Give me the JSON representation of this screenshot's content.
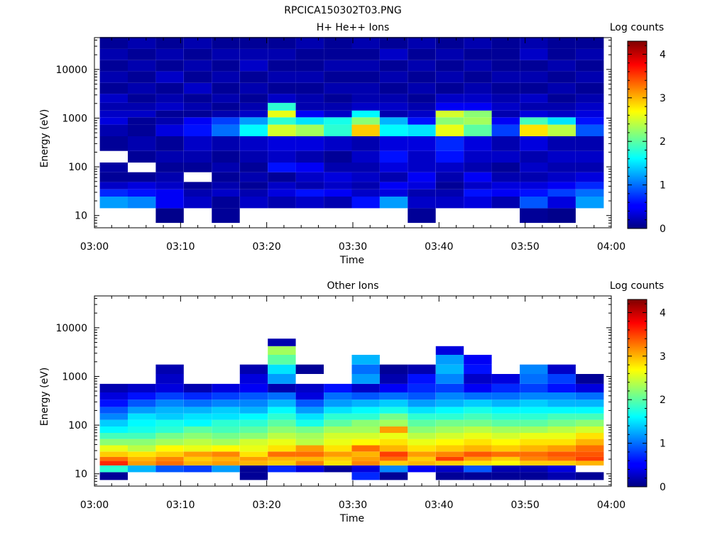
{
  "figure": {
    "title": "RPCICA150302T03.PNG"
  },
  "chart_data": [
    {
      "type": "heatmap",
      "title": "H+ He++ Ions",
      "xlabel": "Time",
      "ylabel": "Energy (eV)",
      "x_ticks": [
        "03:00",
        "03:10",
        "03:20",
        "03:30",
        "03:40",
        "03:50",
        "04:00"
      ],
      "xlim": [
        "03:00",
        "04:00"
      ],
      "y_scale": "log",
      "ylim": [
        5.6,
        45000
      ],
      "y_ticks": [
        10,
        100,
        1000,
        10000
      ],
      "y_tick_labels": [
        "10",
        "100",
        "1000",
        "10000"
      ],
      "colorbar": {
        "label": "Log counts",
        "ticks": [
          "0",
          "1",
          "2",
          "3",
          "4"
        ],
        "range": [
          0,
          4.3
        ]
      },
      "time_bins": [
        "03:02:15",
        "03:05:30",
        "03:08:45",
        "03:12:00",
        "03:15:15",
        "03:18:30",
        "03:21:45",
        "03:25:00",
        "03:28:15",
        "03:31:30",
        "03:34:45",
        "03:38:00",
        "03:41:15",
        "03:44:30",
        "03:47:45",
        "03:51:00",
        "03:54:15",
        "03:57:30"
      ],
      "energy_bins_eV": [
        10,
        20,
        30,
        40,
        60,
        100,
        150,
        300,
        600,
        900,
        1200,
        1700,
        2500,
        4000,
        7000,
        12000,
        20000,
        35000
      ],
      "z": [
        [
          0,
          1.2,
          0.7,
          0.3,
          0.1,
          0.15,
          0,
          0.1,
          0.2,
          0.4,
          0.3,
          0.2,
          0.3,
          0.1,
          0.2,
          0.1,
          0.2,
          0.1
        ],
        [
          0,
          1.1,
          0.6,
          0.4,
          0.1,
          0,
          0.1,
          0.2,
          0.1,
          0.1,
          0.3,
          0.2,
          0.1,
          0.2,
          0.1,
          0.2,
          0.1,
          0.2
        ],
        [
          0.05,
          0.5,
          0.5,
          0.3,
          0.2,
          0.1,
          0.2,
          0.1,
          0.4,
          0.2,
          0.1,
          0.3,
          0.2,
          0.1,
          0.3,
          0.1,
          0.2,
          0.1
        ],
        [
          0,
          0.3,
          0.2,
          0.1,
          0,
          0.1,
          0.2,
          0.3,
          0.6,
          0.5,
          0.1,
          0.2,
          0.1,
          0.3,
          0.1,
          0.2,
          0.1,
          0.2
        ],
        [
          0.1,
          0.1,
          0.3,
          0.2,
          0.1,
          0.2,
          0.1,
          0.2,
          1.0,
          0.8,
          0.2,
          0.1,
          0.2,
          0.1,
          0.2,
          0.1,
          0.2,
          0.1
        ],
        [
          0,
          0.3,
          0.2,
          0.1,
          0.2,
          0.1,
          0.2,
          0.3,
          1.6,
          1.2,
          0.3,
          0.2,
          0.1,
          0.2,
          0.1,
          0.3,
          0.2,
          0.1
        ],
        [
          0,
          0.2,
          0.4,
          0.3,
          0.1,
          0.6,
          0.3,
          0.4,
          2.5,
          1.8,
          2.6,
          1.8,
          0.3,
          0.1,
          0.2,
          0.1,
          0.2,
          0.1
        ],
        [
          0,
          0.3,
          0.6,
          0.2,
          0.3,
          0.5,
          0.2,
          0.4,
          2.3,
          1.5,
          0.5,
          0.2,
          0.2,
          0.1,
          0.2,
          0.1,
          0.1,
          0.2
        ],
        [
          0,
          0.2,
          0.5,
          0.3,
          0.4,
          0.2,
          0.1,
          0.3,
          1.8,
          1.7,
          0.3,
          0.2,
          0.1,
          0.2,
          0.1,
          0.2,
          0.1,
          0.1
        ],
        [
          0,
          0.6,
          0.3,
          0.2,
          0.3,
          0.2,
          0.3,
          0.2,
          2.9,
          2.2,
          1.6,
          0.3,
          0.2,
          0.2,
          0.1,
          0.2,
          0.1,
          0.2
        ],
        [
          0,
          1.2,
          0.4,
          0.5,
          0.2,
          0.4,
          0.6,
          0.4,
          1.6,
          1.3,
          0.2,
          0.3,
          0.2,
          0.1,
          0.2,
          0.1,
          0.3,
          0.1
        ],
        [
          0.1,
          0.3,
          0.2,
          0.4,
          0.5,
          0.3,
          0.3,
          0.4,
          1.5,
          0.6,
          0.3,
          0.2,
          0.1,
          0.2,
          0.1,
          0.2,
          0.1,
          0.2
        ],
        [
          0,
          0.3,
          0.2,
          0.1,
          0.2,
          0.3,
          0.6,
          0.7,
          2.6,
          2.2,
          2.5,
          0.5,
          0.3,
          0.1,
          0.2,
          0.1,
          0.2,
          0.1
        ],
        [
          0,
          0.4,
          0.6,
          0.3,
          0.5,
          0.2,
          0.3,
          0.4,
          2.0,
          2.3,
          2.2,
          0.5,
          0.3,
          0.2,
          0.1,
          0.2,
          0.1,
          0.2
        ],
        [
          0,
          0.2,
          0.5,
          0.4,
          0.2,
          0.1,
          0.3,
          0.2,
          0.8,
          0.5,
          0.2,
          0.3,
          0.2,
          0.1,
          0.2,
          0.1,
          0.1,
          0.1
        ],
        [
          0.1,
          0.9,
          0.6,
          0.4,
          0.2,
          0.3,
          0.2,
          0.4,
          2.8,
          1.9,
          0.4,
          0.2,
          0.3,
          0.1,
          0.2,
          0.1,
          0.3,
          0.2
        ],
        [
          0.05,
          0.4,
          0.8,
          0.5,
          0.3,
          0.2,
          0.3,
          0.2,
          2.4,
          1.5,
          0.3,
          0.2,
          0.1,
          0.2,
          0.1,
          0.2,
          0.1,
          0.1
        ],
        [
          0,
          1.2,
          1.0,
          0.7,
          0.4,
          0.2,
          0.3,
          0.2,
          0.9,
          0.6,
          0.4,
          0.3,
          0.2,
          0.1,
          0.2,
          0.1,
          0.2,
          0.1
        ]
      ]
    },
    {
      "type": "heatmap",
      "title": "Other Ions",
      "xlabel": "Time",
      "ylabel": "Energy (eV)",
      "x_ticks": [
        "03:00",
        "03:10",
        "03:20",
        "03:30",
        "03:40",
        "03:50",
        "04:00"
      ],
      "xlim": [
        "03:00",
        "04:00"
      ],
      "y_scale": "log",
      "ylim": [
        5.6,
        45000
      ],
      "y_ticks": [
        10,
        100,
        1000,
        10000
      ],
      "y_tick_labels": [
        "10",
        "100",
        "1000",
        "10000"
      ],
      "colorbar": {
        "label": "Log counts",
        "ticks": [
          "0",
          "1",
          "2",
          "3",
          "4"
        ],
        "range": [
          0,
          4.3
        ]
      },
      "time_bins": [
        "03:02:15",
        "03:05:30",
        "03:08:45",
        "03:12:00",
        "03:15:15",
        "03:18:30",
        "03:21:45",
        "03:25:00",
        "03:28:15",
        "03:31:30",
        "03:34:45",
        "03:38:00",
        "03:41:15",
        "03:44:30",
        "03:47:45",
        "03:51:00",
        "03:54:15",
        "03:57:30"
      ],
      "energy_bins_eV": [
        9,
        13,
        17,
        20,
        25,
        33,
        45,
        60,
        80,
        110,
        150,
        200,
        280,
        400,
        550,
        900,
        1400,
        2200,
        3500,
        5000
      ],
      "z": [
        [
          0.1,
          1.8,
          3.6,
          3.3,
          2.9,
          2.6,
          2.2,
          1.9,
          1.6,
          1.4,
          1.1,
          0.9,
          0.6,
          0.4,
          0.2,
          0,
          0,
          0,
          0,
          0
        ],
        [
          0,
          1.3,
          3.1,
          3.0,
          2.8,
          2.4,
          2.2,
          1.9,
          1.7,
          1.6,
          1.5,
          1.2,
          0.9,
          0.6,
          0.3,
          0,
          0,
          0,
          0,
          0
        ],
        [
          0,
          0.9,
          3.3,
          3.2,
          2.9,
          2.7,
          2.3,
          2.1,
          1.8,
          1.7,
          1.4,
          1.3,
          1.1,
          0.8,
          0.4,
          0.3,
          0.2,
          0,
          0,
          0
        ],
        [
          0,
          0.8,
          3.0,
          2.9,
          3.1,
          2.6,
          2.4,
          2.2,
          2.0,
          1.6,
          1.5,
          1.3,
          1.0,
          0.7,
          0.2,
          0,
          0,
          0,
          0,
          0
        ],
        [
          0,
          1.2,
          3.1,
          3.0,
          3.2,
          2.7,
          2.3,
          2.1,
          1.9,
          1.8,
          1.5,
          1.4,
          1.1,
          0.8,
          0.4,
          0,
          0,
          0,
          0,
          0
        ],
        [
          0.1,
          0.1,
          3.0,
          3.1,
          2.8,
          2.6,
          2.5,
          2.2,
          2.0,
          1.8,
          1.6,
          1.3,
          1.1,
          0.9,
          0.5,
          0.4,
          0.2,
          0,
          0,
          0
        ],
        [
          0,
          0.7,
          2.9,
          3.0,
          3.3,
          2.8,
          2.6,
          2.4,
          2.2,
          2.0,
          1.8,
          1.6,
          1.3,
          1.0,
          0.2,
          1.2,
          1.5,
          2.0,
          2.3,
          0.2
        ],
        [
          0,
          0.4,
          3.2,
          3.0,
          3.3,
          3.1,
          2.4,
          2.3,
          2.1,
          1.7,
          1.5,
          1.2,
          0.9,
          0.4,
          0.3,
          0,
          0.1,
          0,
          0,
          0
        ],
        [
          0,
          0.1,
          2.8,
          2.9,
          3.1,
          2.8,
          2.6,
          2.5,
          2.3,
          2.0,
          1.8,
          1.5,
          1.2,
          1.0,
          0.6,
          0,
          0,
          0,
          0,
          0
        ],
        [
          0.7,
          0.4,
          3.2,
          3.1,
          3.0,
          3.3,
          2.7,
          2.5,
          2.3,
          2.2,
          1.8,
          1.6,
          1.3,
          0.9,
          0.3,
          1.2,
          1.0,
          1.3,
          0,
          0
        ],
        [
          0.1,
          1.1,
          2.9,
          3.3,
          3.5,
          3.0,
          2.8,
          2.6,
          3.1,
          2.3,
          2.1,
          1.7,
          1.4,
          1.0,
          0.5,
          0.2,
          0.1,
          0,
          0,
          0
        ],
        [
          0,
          0.5,
          3.0,
          2.9,
          3.1,
          2.8,
          2.6,
          2.4,
          2.2,
          2.0,
          1.8,
          1.5,
          1.2,
          0.9,
          0.7,
          0.6,
          0.2,
          0,
          0,
          0
        ],
        [
          0.1,
          0.3,
          2.9,
          3.5,
          3.2,
          2.9,
          2.7,
          2.5,
          2.3,
          2.1,
          1.8,
          1.6,
          1.3,
          1.1,
          0.8,
          1.1,
          1.3,
          1.2,
          0.4,
          0
        ],
        [
          0.1,
          0.9,
          2.8,
          3.1,
          3.4,
          3.0,
          2.8,
          2.6,
          2.4,
          2.1,
          1.9,
          1.7,
          1.4,
          1.0,
          0.5,
          0.3,
          0.6,
          0.5,
          0,
          0
        ],
        [
          0.1,
          0.2,
          2.7,
          2.9,
          3.3,
          2.9,
          2.7,
          2.5,
          2.3,
          2.0,
          1.8,
          1.6,
          1.3,
          1.0,
          0.7,
          0.4,
          0,
          0,
          0,
          0
        ],
        [
          0.1,
          0.2,
          2.9,
          3.2,
          3.3,
          3.0,
          2.8,
          2.6,
          2.3,
          2.0,
          1.8,
          1.6,
          1.4,
          1.1,
          0.8,
          1.0,
          1.1,
          0,
          0,
          0
        ],
        [
          0.2,
          0.4,
          2.9,
          3.3,
          3.4,
          3.1,
          2.8,
          2.6,
          2.4,
          2.1,
          1.9,
          1.6,
          1.3,
          1.1,
          0.6,
          0.8,
          0.3,
          0,
          0,
          0
        ],
        [
          0.1,
          0,
          3.0,
          3.5,
          3.4,
          3.3,
          3.0,
          2.8,
          2.5,
          2.2,
          1.9,
          1.6,
          1.3,
          1.0,
          0.4,
          0.1,
          0,
          0,
          0,
          0
        ]
      ]
    }
  ]
}
